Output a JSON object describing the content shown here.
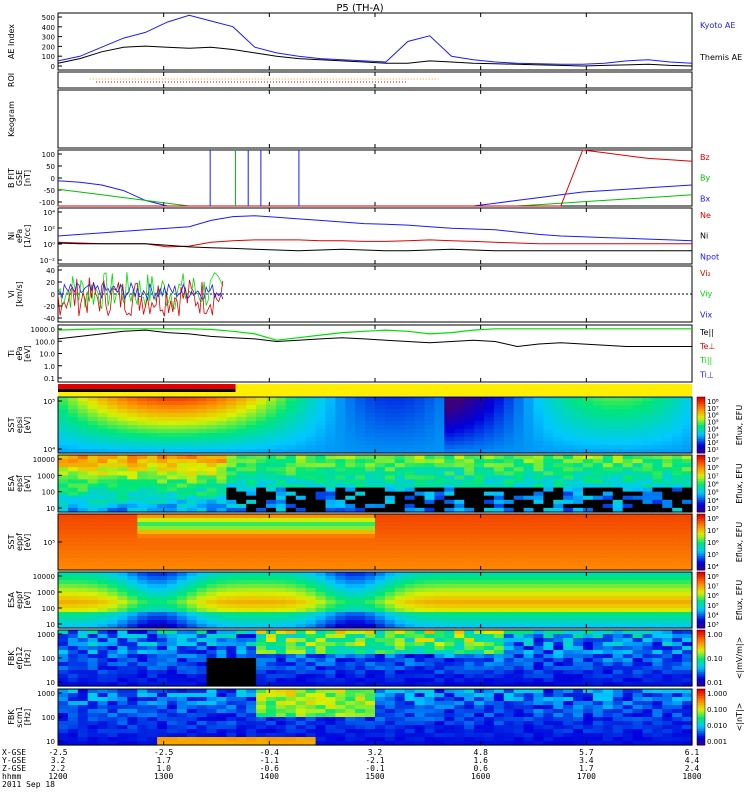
{
  "title": "P5 (TH-A)",
  "colors": {
    "kyoto": "#1a1aff",
    "themis": "#000000",
    "bz": "#e00000",
    "by": "#00c000",
    "bx": "#1a1aff",
    "ne": "#e00000",
    "ni": "#000000",
    "npot": "#1a1aff",
    "vx": "#e00000",
    "vy": "#00e000",
    "vz": "#1a1aff",
    "te": "#e00000",
    "ti": "#00e000",
    "tperp": "#1a1aff",
    "tpar": "#000000",
    "roi_orange": "#ff8c00",
    "roi_red": "#cc0000",
    "bar_red": "#e00000",
    "bar_yellow": "#ffee00"
  },
  "chart_data": {
    "type": "multi-panel time series",
    "x_ticks": [
      "1200",
      "1300",
      "1400",
      "1500",
      "1600",
      "1700",
      "1800"
    ],
    "panels": [
      {
        "id": "ae",
        "ylabel": "AE Index",
        "yticks": [
          "500",
          "400",
          "300",
          "200",
          "100",
          "0"
        ],
        "ylim": [
          0,
          500
        ],
        "series": [
          {
            "name": "Kyoto AE",
            "color": "kyoto",
            "values": [
              80,
              120,
              200,
              280,
              330,
              420,
              480,
              430,
              380,
              200,
              150,
              120,
              100,
              90,
              80,
              70,
              250,
              300,
              120,
              90,
              70,
              60,
              55,
              50,
              50,
              60,
              80,
              90,
              70,
              60
            ]
          },
          {
            "name": "Themis AE",
            "color": "themis",
            "values": [
              60,
              100,
              160,
              200,
              210,
              200,
              190,
              200,
              180,
              150,
              120,
              100,
              90,
              80,
              70,
              60,
              60,
              80,
              70,
              60,
              55,
              50,
              45,
              40,
              35,
              40,
              45,
              50,
              40,
              35
            ]
          }
        ]
      },
      {
        "id": "roi",
        "ylabel": "ROI"
      },
      {
        "id": "keogram",
        "ylabel": "Keogram"
      },
      {
        "id": "bfit",
        "ylabel": "B FIT\nGSE\n[nT]",
        "yticks": [
          "100",
          "50",
          "0",
          "-50",
          "-100"
        ],
        "ylim": [
          -100,
          100
        ],
        "legend": [
          "Bz",
          "By",
          "Bx"
        ]
      },
      {
        "id": "ni",
        "ylabel": "Ni\nePa\n[1/cc]",
        "yticks": [
          "10⁴",
          "10²",
          "10⁰",
          "10⁻²"
        ],
        "legend": [
          "Ne",
          "Ni",
          "Npot"
        ]
      },
      {
        "id": "vi",
        "ylabel": "Vi\n[km/s]",
        "yticks": [
          "40",
          "20",
          "0",
          "-20",
          "-40"
        ],
        "ylim": [
          -50,
          50
        ],
        "legend": [
          "Vi₂",
          "Viy",
          "Vix"
        ]
      },
      {
        "id": "ti",
        "ylabel": "Ti\nePa\n[eV]",
        "yticks": [
          "1000.0",
          "100.0",
          "10.0",
          "1.0",
          "0.1"
        ],
        "legend": [
          "Te||",
          "Te⊥",
          "Ti||",
          "Ti⊥"
        ]
      },
      {
        "id": "sst_e",
        "ylabel": "SST\nepsi\n[eV]",
        "yticks": [
          "10⁵",
          "10⁴"
        ],
        "cbar": [
          "10⁸",
          "10⁷",
          "10⁶",
          "10⁵",
          "10⁴",
          "10³",
          "10²",
          "10¹"
        ],
        "cbar_label": "Eflux, EFU"
      },
      {
        "id": "esa_e",
        "ylabel": "ESA\nepsf\n[eV]",
        "yticks": [
          "10000",
          "1000",
          "100",
          "10"
        ],
        "cbar": [
          "10⁹",
          "10⁸",
          "10⁷",
          "10⁶",
          "10⁵",
          "10⁴",
          "10³"
        ],
        "cbar_label": "Eflux, EFU"
      },
      {
        "id": "sst_i",
        "ylabel": "SST\neppf\n[eV]",
        "yticks": [
          "10⁵"
        ],
        "cbar": [
          "10⁸",
          "10⁷",
          "10⁶",
          "10⁵",
          "10⁴"
        ],
        "cbar_label": "Eflux, EFU"
      },
      {
        "id": "esa_i",
        "ylabel": "ESA\neppf\n[eV]",
        "yticks": [
          "10000",
          "1000",
          "100",
          "10"
        ],
        "cbar": [
          "10⁸",
          "10⁷",
          "10⁶",
          "10⁵",
          "10⁴",
          "10³"
        ],
        "cbar_label": "Eflux, EFU"
      },
      {
        "id": "fbk_e",
        "ylabel": "FBK\nefp12\n[Hz]",
        "yticks": [
          "1000",
          "100",
          "10"
        ],
        "cbar": [
          "1.00",
          "0.10",
          "0.01"
        ],
        "cbar_label": "<|mV/m|>"
      },
      {
        "id": "fbk_b",
        "ylabel": "FBK\nscm1\n[Hz]",
        "yticks": [
          "1000",
          "100",
          "10"
        ],
        "cbar": [
          "1.000",
          "0.100",
          "0.010",
          "0.001"
        ],
        "cbar_label": "<|nT|>"
      }
    ],
    "footer": {
      "row_labels": [
        "X-GSE",
        "Y-GSE",
        "Z-GSE",
        "hhmm",
        "2011 Sep 18"
      ],
      "columns": [
        [
          "-2.5",
          "-2.5",
          "-0.4",
          "3.2",
          "4.8",
          "5.7",
          "6.1"
        ],
        [
          "3.2",
          "1.7",
          "-1.1",
          "-2.1",
          "1.6",
          "3.4",
          "4.4"
        ],
        [
          "2.2",
          "1.0",
          "-0.6",
          "-0.1",
          "0.6",
          "1.7",
          "2.4"
        ],
        [
          "1200",
          "1300",
          "1400",
          "1500",
          "1600",
          "1700",
          "1800"
        ]
      ]
    }
  }
}
